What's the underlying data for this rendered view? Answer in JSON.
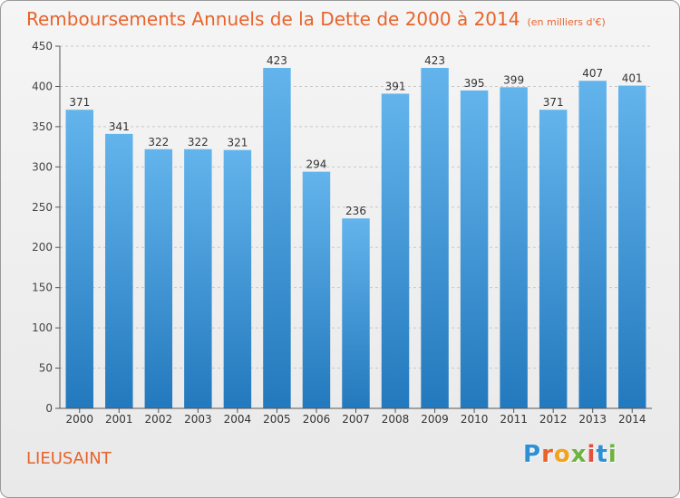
{
  "title": "Remboursements Annuels de la Dette de 2000 à 2014",
  "subtitle": "(en milliers d'€)",
  "city": "LIEUSAINT",
  "logo": {
    "letters": [
      "P",
      "r",
      "o",
      "x",
      "i",
      "t",
      "i"
    ],
    "colors": [
      "#2d8fd6",
      "#e8632a",
      "#f3a21b",
      "#6db33f",
      "#e84c3d",
      "#2d8fd6",
      "#6db33f"
    ]
  },
  "colors": {
    "bar_top": "#63b4ec",
    "bar_bottom": "#2379bd",
    "title": "#e8632a",
    "axis": "#555555",
    "grid": "#c8c8c8"
  },
  "chart_data": {
    "type": "bar",
    "categories": [
      "2000",
      "2001",
      "2002",
      "2003",
      "2004",
      "2005",
      "2006",
      "2007",
      "2008",
      "2009",
      "2010",
      "2011",
      "2012",
      "2013",
      "2014"
    ],
    "values": [
      371,
      341,
      322,
      322,
      321,
      423,
      294,
      236,
      391,
      423,
      395,
      399,
      371,
      407,
      401
    ],
    "yticks": [
      0,
      50,
      100,
      150,
      200,
      250,
      300,
      350,
      400,
      450
    ],
    "ylim": [
      0,
      450
    ],
    "grid": true,
    "data_labels": true
  }
}
